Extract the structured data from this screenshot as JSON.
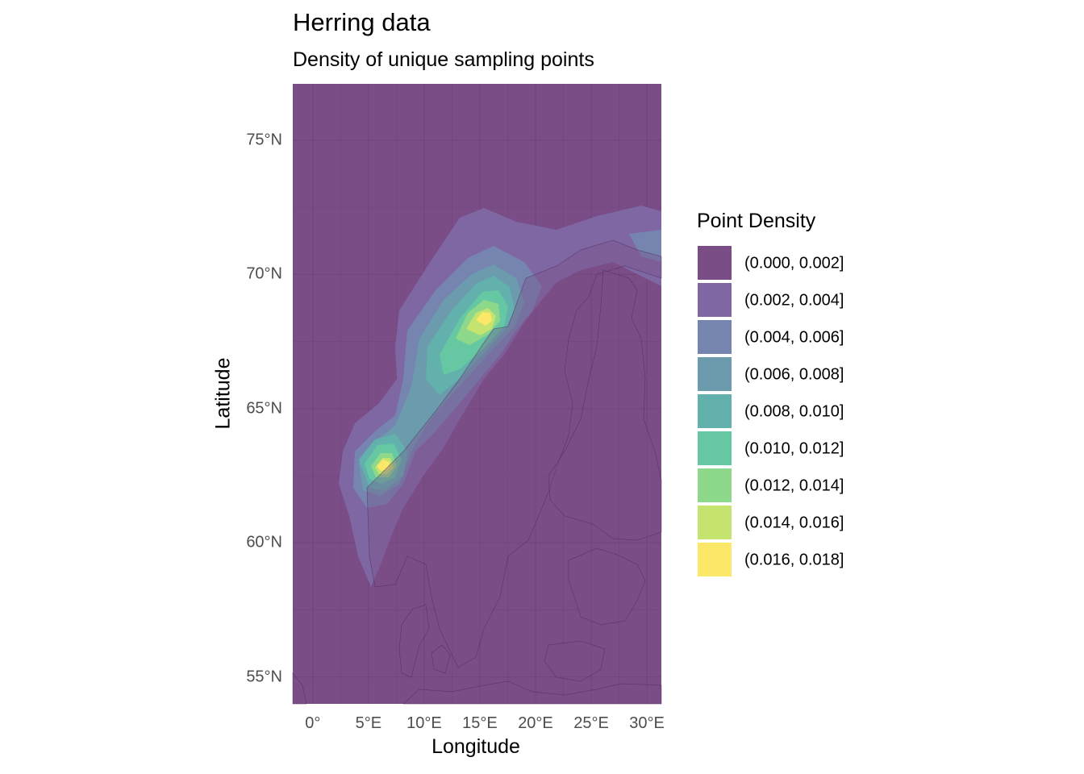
{
  "chart_data": {
    "type": "heatmap",
    "title": "Herring data",
    "subtitle": "Density of unique sampling points",
    "xlabel": "Longitude",
    "ylabel": "Latitude",
    "xlim": [
      -1.8,
      31.3
    ],
    "ylim": [
      54.0,
      77.1
    ],
    "x_ticks": [
      {
        "value": 0,
        "label": "0°"
      },
      {
        "value": 5,
        "label": "5°E"
      },
      {
        "value": 10,
        "label": "10°E"
      },
      {
        "value": 15,
        "label": "15°E"
      },
      {
        "value": 20,
        "label": "20°E"
      },
      {
        "value": 25,
        "label": "25°E"
      },
      {
        "value": 30,
        "label": "30°E"
      }
    ],
    "y_ticks": [
      {
        "value": 55,
        "label": "55°N"
      },
      {
        "value": 60,
        "label": "60°N"
      },
      {
        "value": 65,
        "label": "65°N"
      },
      {
        "value": 70,
        "label": "70°N"
      },
      {
        "value": 75,
        "label": "75°N"
      }
    ],
    "grid": true,
    "legend": {
      "title": "Point Density",
      "position": "right",
      "levels": [
        {
          "label": "(0.000, 0.002]",
          "color": "#7a4d86"
        },
        {
          "label": "(0.002, 0.004]",
          "color": "#7e67a3"
        },
        {
          "label": "(0.004, 0.006]",
          "color": "#7685b0"
        },
        {
          "label": "(0.006, 0.008]",
          "color": "#6c9bae"
        },
        {
          "label": "(0.008, 0.010]",
          "color": "#62b1ad"
        },
        {
          "label": "(0.010, 0.012]",
          "color": "#66c8a3"
        },
        {
          "label": "(0.012, 0.014]",
          "color": "#8dd88a"
        },
        {
          "label": "(0.014, 0.016]",
          "color": "#c5e36f"
        },
        {
          "label": "(0.016, 0.018]",
          "color": "#fbe868"
        }
      ]
    },
    "density_peaks": [
      {
        "lon": 15.6,
        "lat": 68.4,
        "level": "(0.016, 0.018]"
      },
      {
        "lon": 6.2,
        "lat": 62.9,
        "level": "(0.016, 0.018]"
      }
    ]
  }
}
